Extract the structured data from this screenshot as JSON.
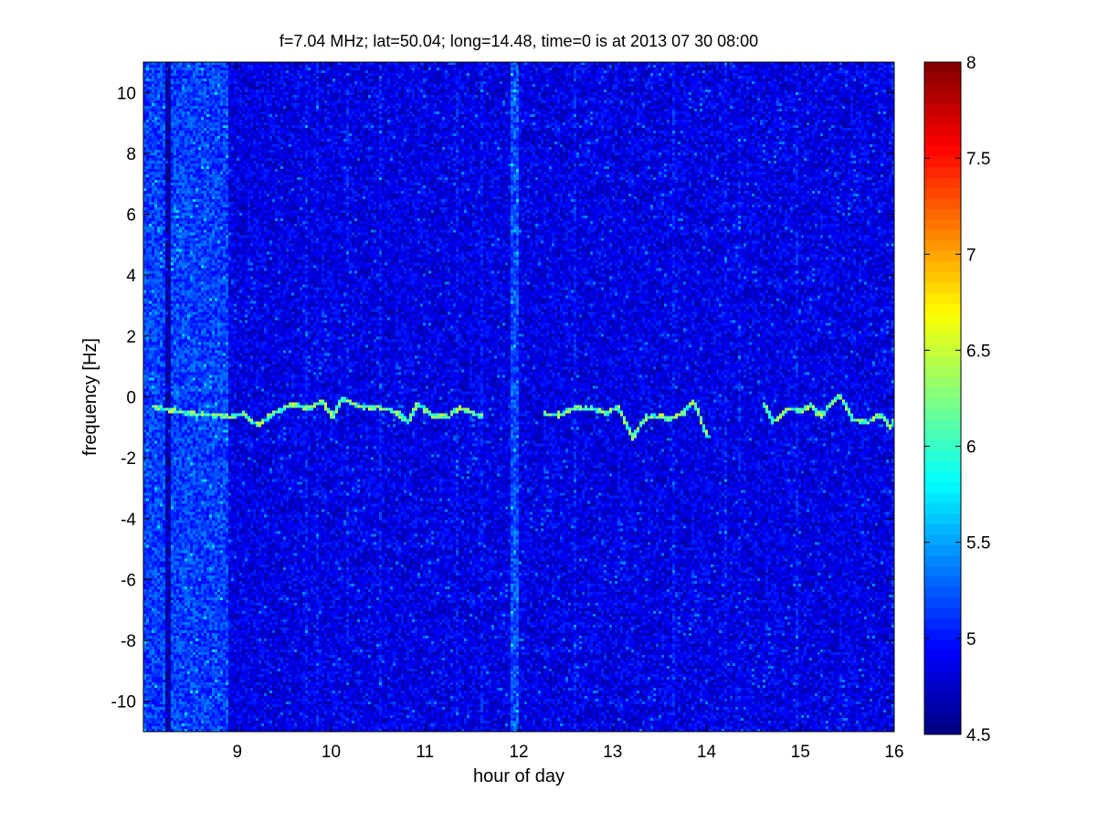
{
  "chart_data": {
    "type": "heatmap",
    "title": "f=7.04 MHz;  lat=50.04; long=14.48, time=0 is at 2013 07 30 08:00",
    "xlabel": "hour of day",
    "ylabel": "frequency [Hz]",
    "xlim": [
      8,
      16
    ],
    "ylim": [
      -11,
      11
    ],
    "xticks": [
      9,
      10,
      11,
      12,
      13,
      14,
      15,
      16
    ],
    "xtick_labels": [
      "9",
      "10",
      "11",
      "12",
      "13",
      "14",
      "15",
      "16"
    ],
    "yticks": [
      -10,
      -8,
      -6,
      -4,
      -2,
      0,
      2,
      4,
      6,
      8,
      10
    ],
    "ytick_labels": [
      "-10",
      "-8",
      "-6",
      "-4",
      "-2",
      "0",
      "2",
      "4",
      "6",
      "8",
      "10"
    ],
    "colormap": "jet",
    "colorbar": {
      "range": [
        4.5,
        8
      ],
      "ticks": [
        4.5,
        5,
        5.5,
        6,
        6.5,
        7,
        7.5,
        8
      ],
      "tick_labels": [
        "4.5",
        "5",
        "5.5",
        "6",
        "6.5",
        "7",
        "7.5",
        "8"
      ]
    },
    "background_level": 4.85,
    "bright_bands": [
      {
        "x_range": [
          8.0,
          8.9
        ],
        "level": 5.15
      },
      {
        "x_range": [
          11.9,
          12.0
        ],
        "level": 5.2
      }
    ],
    "dark_stripes": [
      8.25
    ],
    "doppler_trace": [
      {
        "segment": [
          [
            8.1,
            -0.3
          ],
          [
            8.3,
            -0.4
          ],
          [
            8.5,
            -0.5
          ],
          [
            8.7,
            -0.55
          ],
          [
            8.9,
            -0.6
          ],
          [
            9.05,
            -0.5
          ],
          [
            9.2,
            -0.9
          ],
          [
            9.35,
            -0.55
          ],
          [
            9.5,
            -0.3
          ],
          [
            9.6,
            -0.2
          ],
          [
            9.75,
            -0.35
          ],
          [
            9.9,
            -0.1
          ],
          [
            10.0,
            -0.6
          ],
          [
            10.1,
            0.0
          ],
          [
            10.3,
            -0.3
          ],
          [
            10.5,
            -0.3
          ],
          [
            10.7,
            -0.5
          ],
          [
            10.8,
            -0.8
          ],
          [
            10.9,
            -0.2
          ],
          [
            11.0,
            -0.4
          ],
          [
            11.1,
            -0.6
          ],
          [
            11.25,
            -0.6
          ],
          [
            11.35,
            -0.3
          ],
          [
            11.5,
            -0.5
          ],
          [
            11.6,
            -0.6
          ]
        ]
      },
      {
        "segment": [
          [
            12.25,
            -0.5
          ],
          [
            12.4,
            -0.55
          ],
          [
            12.6,
            -0.3
          ],
          [
            12.8,
            -0.35
          ],
          [
            12.9,
            -0.5
          ],
          [
            13.05,
            -0.3
          ],
          [
            13.2,
            -1.3
          ],
          [
            13.35,
            -0.6
          ],
          [
            13.5,
            -0.6
          ],
          [
            13.6,
            -0.7
          ],
          [
            13.75,
            -0.45
          ],
          [
            13.85,
            -0.1
          ],
          [
            14.0,
            -1.3
          ]
        ]
      },
      {
        "segment": [
          [
            14.6,
            -0.2
          ],
          [
            14.7,
            -0.8
          ],
          [
            14.85,
            -0.35
          ],
          [
            15.0,
            -0.4
          ],
          [
            15.1,
            -0.25
          ],
          [
            15.2,
            -0.6
          ],
          [
            15.4,
            0.1
          ],
          [
            15.55,
            -0.7
          ],
          [
            15.7,
            -0.8
          ],
          [
            15.85,
            -0.5
          ],
          [
            15.95,
            -1.0
          ],
          [
            16.0,
            -0.6
          ]
        ]
      }
    ]
  }
}
